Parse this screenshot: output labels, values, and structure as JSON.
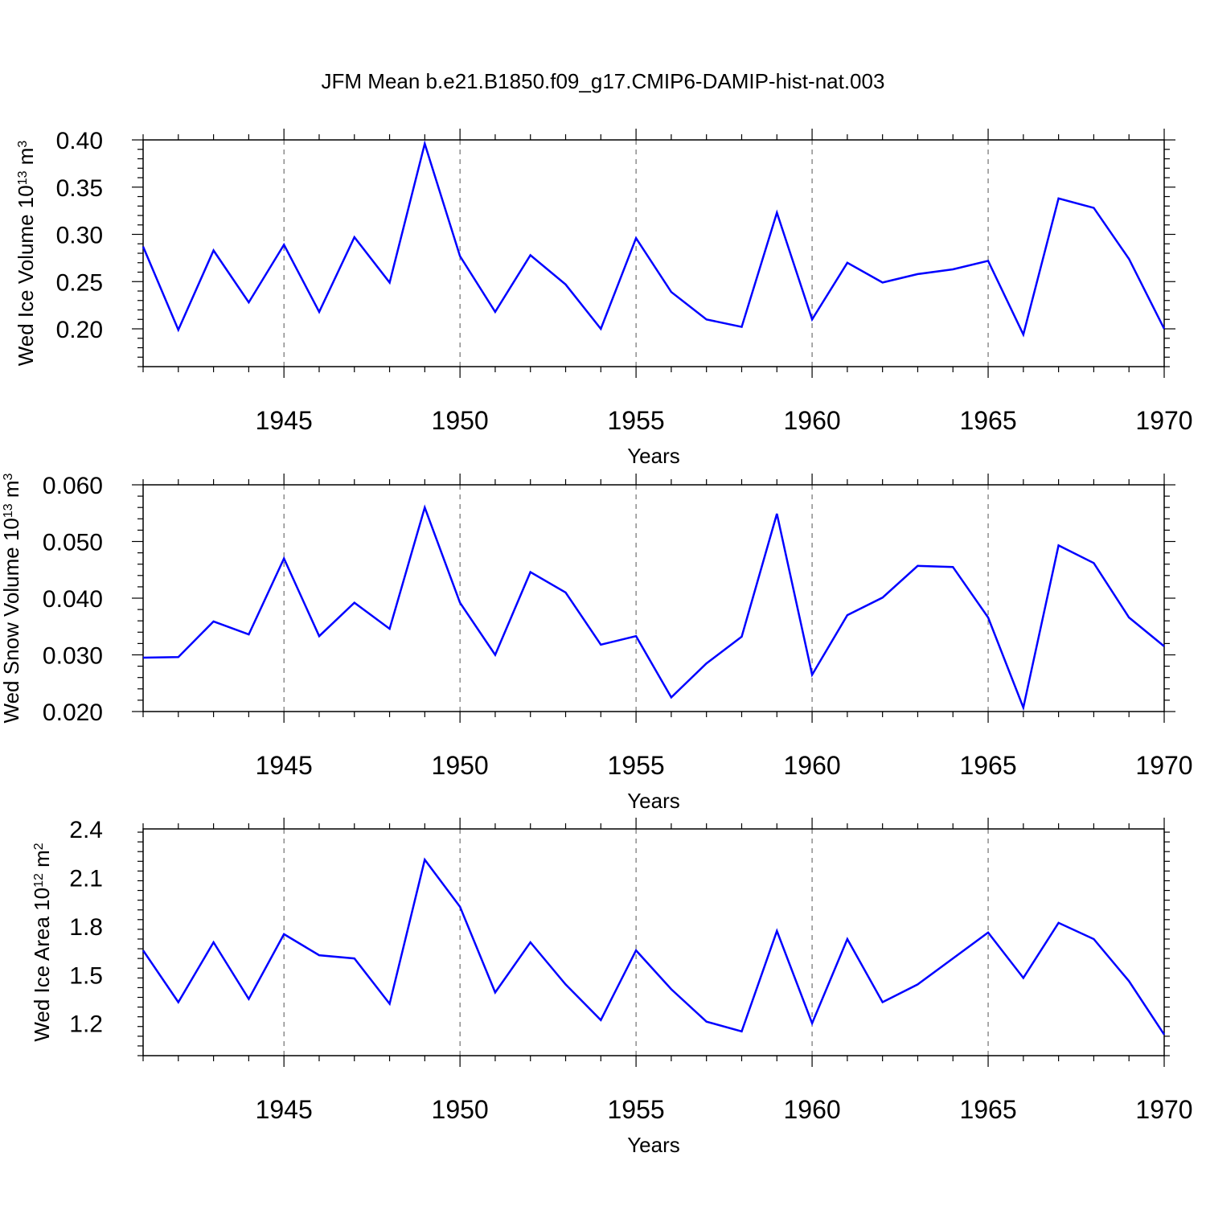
{
  "figure_title": "JFM Mean b.e21.B1850.f09_g17.CMIP6-DAMIP-hist-nat.003",
  "line_color": "#0000ff",
  "chart_data": [
    {
      "type": "line",
      "ylabel": "Wed Ice Volume 10",
      "ylabel_exp": "13",
      "ylabel_unit": " m",
      "ylabel_unit_exp": "3",
      "xlabel": "Years",
      "xlim": [
        1941,
        1970
      ],
      "ylim": [
        0.16,
        0.4
      ],
      "yticks": [
        0.2,
        0.25,
        0.3,
        0.35,
        0.4
      ],
      "ytick_labels": [
        "0.20",
        "0.25",
        "0.30",
        "0.35",
        "0.40"
      ],
      "xticks": [
        1945,
        1950,
        1955,
        1960,
        1965,
        1970
      ],
      "xtick_labels": [
        "1945",
        "1950",
        "1955",
        "1960",
        "1965",
        "1970"
      ],
      "x": [
        1941,
        1942,
        1943,
        1944,
        1945,
        1946,
        1947,
        1948,
        1949,
        1950,
        1951,
        1952,
        1953,
        1954,
        1955,
        1956,
        1957,
        1958,
        1959,
        1960,
        1961,
        1962,
        1963,
        1964,
        1965,
        1966,
        1967,
        1968,
        1969,
        1970
      ],
      "values": [
        0.287,
        0.199,
        0.283,
        0.228,
        0.289,
        0.218,
        0.297,
        0.249,
        0.396,
        0.277,
        0.218,
        0.278,
        0.247,
        0.2,
        0.296,
        0.239,
        0.21,
        0.202,
        0.323,
        0.21,
        0.27,
        0.249,
        0.258,
        0.263,
        0.272,
        0.194,
        0.338,
        0.328,
        0.274,
        0.2
      ]
    },
    {
      "type": "line",
      "ylabel": "Wed Snow Volume 10",
      "ylabel_exp": "13",
      "ylabel_unit": " m",
      "ylabel_unit_exp": "3",
      "xlabel": "Years",
      "xlim": [
        1941,
        1970
      ],
      "ylim": [
        0.02,
        0.06
      ],
      "yticks": [
        0.02,
        0.03,
        0.04,
        0.05,
        0.06
      ],
      "ytick_labels": [
        "0.020",
        "0.030",
        "0.040",
        "0.050",
        "0.060"
      ],
      "xticks": [
        1945,
        1950,
        1955,
        1960,
        1965,
        1970
      ],
      "xtick_labels": [
        "1945",
        "1950",
        "1955",
        "1960",
        "1965",
        "1970"
      ],
      "x": [
        1941,
        1942,
        1943,
        1944,
        1945,
        1946,
        1947,
        1948,
        1949,
        1950,
        1951,
        1952,
        1953,
        1954,
        1955,
        1956,
        1957,
        1958,
        1959,
        1960,
        1961,
        1962,
        1963,
        1964,
        1965,
        1966,
        1967,
        1968,
        1969,
        1970
      ],
      "values": [
        0.0295,
        0.0296,
        0.0359,
        0.0336,
        0.047,
        0.0333,
        0.0392,
        0.0346,
        0.056,
        0.0392,
        0.03,
        0.0446,
        0.041,
        0.0318,
        0.0333,
        0.0225,
        0.0285,
        0.0332,
        0.0549,
        0.0265,
        0.037,
        0.0401,
        0.0457,
        0.0455,
        0.0366,
        0.0207,
        0.0493,
        0.0462,
        0.0366,
        0.0315
      ]
    },
    {
      "type": "line",
      "ylabel": "Wed Ice Area 10",
      "ylabel_exp": "12",
      "ylabel_unit": " m",
      "ylabel_unit_exp": "2",
      "xlabel": "Years",
      "xlim": [
        1941,
        1970
      ],
      "ylim": [
        1.0,
        2.4
      ],
      "yticks": [
        1.2,
        1.5,
        1.8,
        2.1,
        2.4
      ],
      "ytick_labels": [
        "1.2",
        "1.5",
        "1.8",
        "2.1",
        "2.4"
      ],
      "xticks": [
        1945,
        1950,
        1955,
        1960,
        1965,
        1970
      ],
      "xtick_labels": [
        "1945",
        "1950",
        "1955",
        "1960",
        "1965",
        "1970"
      ],
      "x": [
        1941,
        1942,
        1943,
        1944,
        1945,
        1946,
        1947,
        1948,
        1949,
        1950,
        1951,
        1952,
        1953,
        1954,
        1955,
        1956,
        1957,
        1958,
        1959,
        1960,
        1961,
        1962,
        1963,
        1964,
        1965,
        1966,
        1967,
        1968,
        1969,
        1970
      ],
      "values": [
        1.65,
        1.33,
        1.7,
        1.35,
        1.75,
        1.62,
        1.6,
        1.32,
        2.21,
        1.92,
        1.39,
        1.7,
        1.44,
        1.22,
        1.65,
        1.41,
        1.21,
        1.15,
        1.77,
        1.2,
        1.72,
        1.33,
        1.44,
        1.6,
        1.76,
        1.48,
        1.82,
        1.72,
        1.46,
        1.13
      ]
    }
  ]
}
